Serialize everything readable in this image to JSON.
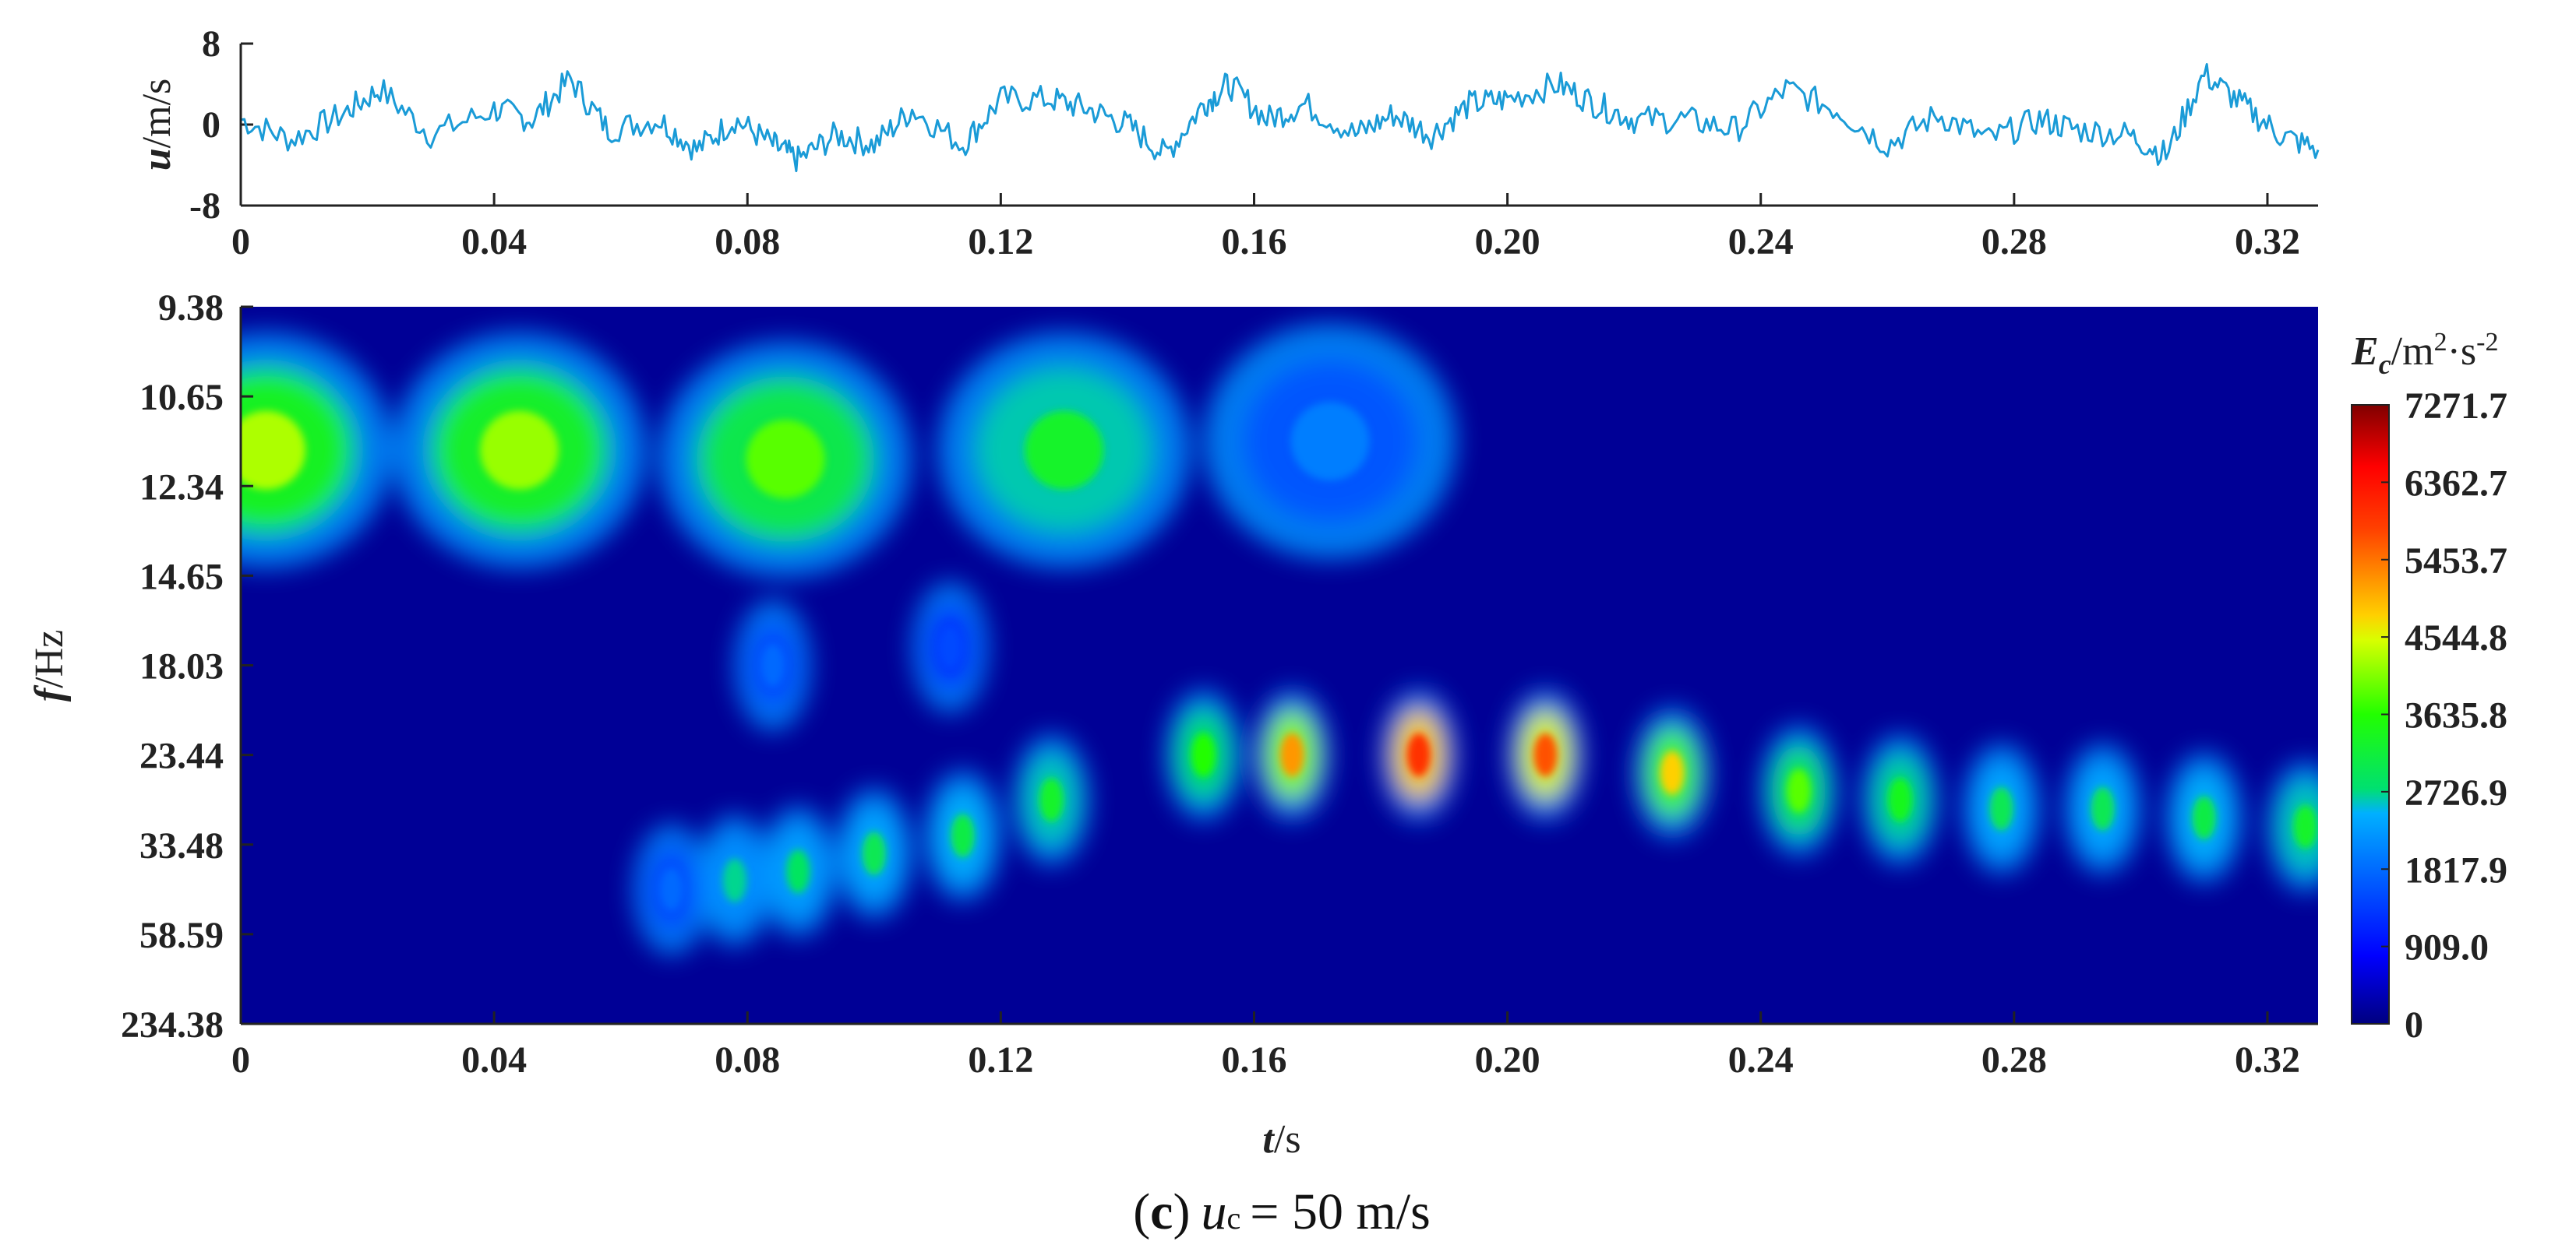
{
  "caption": {
    "label_open": "(",
    "label_letter": "c",
    "label_close": ")",
    "var": "u",
    "sub": "c",
    "rest": "= 50 m/s"
  },
  "chart_data": [
    {
      "type": "line",
      "name": "velocity-trace",
      "ylabel_var": "u",
      "ylabel_unit": "/m/s",
      "xlabel": "",
      "xlim": [
        0,
        0.328
      ],
      "ylim": [
        -8,
        8
      ],
      "yticks": [
        "8",
        "0",
        "-8"
      ],
      "ytick_values": [
        8,
        0,
        -8
      ],
      "xticks": [
        "0",
        "0.04",
        "0.08",
        "0.12",
        "0.16",
        "0.20",
        "0.24",
        "0.28",
        "0.32"
      ],
      "xtick_values": [
        0,
        0.04,
        0.08,
        0.12,
        0.16,
        0.2,
        0.24,
        0.28,
        0.32
      ],
      "color": "#1a9bd7",
      "series": [
        {
          "name": "u",
          "x": [
            0,
            0.008,
            0.016,
            0.022,
            0.03,
            0.04,
            0.046,
            0.052,
            0.058,
            0.066,
            0.072,
            0.078,
            0.084,
            0.088,
            0.094,
            0.1,
            0.106,
            0.114,
            0.12,
            0.128,
            0.134,
            0.14,
            0.146,
            0.152,
            0.156,
            0.162,
            0.168,
            0.176,
            0.182,
            0.188,
            0.194,
            0.2,
            0.208,
            0.214,
            0.22,
            0.228,
            0.236,
            0.244,
            0.252,
            0.26,
            0.268,
            0.276,
            0.284,
            0.29,
            0.298,
            0.304,
            0.31,
            0.316,
            0.322,
            0.328
          ],
          "values": [
            0.5,
            -1.5,
            1.0,
            3.5,
            -1.0,
            1.5,
            0.5,
            4.5,
            -0.5,
            0.5,
            -2.5,
            0.5,
            -2.0,
            -3.5,
            -1.0,
            -2.0,
            1.5,
            -2.0,
            2.5,
            2.5,
            1.5,
            0.0,
            -3.0,
            2.0,
            4.0,
            0.5,
            2.0,
            -1.0,
            1.0,
            -1.0,
            2.0,
            2.5,
            4.0,
            2.0,
            0.5,
            0.5,
            -0.5,
            3.5,
            1.5,
            -2.0,
            1.0,
            -1.5,
            0.5,
            -0.5,
            -1.0,
            -3.0,
            5.0,
            2.0,
            -1.0,
            -2.5
          ]
        }
      ]
    },
    {
      "type": "heatmap",
      "name": "wavelet-energy-spectrum",
      "xlabel_var": "t",
      "xlabel_unit": "/s",
      "ylabel_var": "f",
      "ylabel_unit": "/Hz",
      "xlim": [
        0,
        0.328
      ],
      "xticks": [
        "0",
        "0.04",
        "0.08",
        "0.12",
        "0.16",
        "0.20",
        "0.24",
        "0.28",
        "0.32"
      ],
      "xtick_values": [
        0,
        0.04,
        0.08,
        0.12,
        0.16,
        0.2,
        0.24,
        0.28,
        0.32
      ],
      "yticks": [
        "9.38",
        "10.65",
        "12.34",
        "14.65",
        "18.03",
        "23.44",
        "33.48",
        "58.59",
        "234.38"
      ],
      "ytick_index": [
        0,
        1,
        2,
        3,
        4,
        5,
        6,
        7,
        8
      ],
      "colorbar": {
        "title_var": "E",
        "title_sub": "c",
        "title_unit_a": "/m",
        "title_sup_a": "2",
        "title_unit_b": "·s",
        "title_sup_b": "-2",
        "min": 0,
        "max": 7271.7,
        "ticks": [
          "7271.7",
          "6362.7",
          "5453.7",
          "4544.8",
          "3635.8",
          "2726.9",
          "1817.9",
          "909.0",
          "0"
        ],
        "tick_values": [
          7271.7,
          6362.7,
          5453.7,
          4544.8,
          3635.8,
          2726.9,
          1817.9,
          909.0,
          0
        ],
        "colormap": "jet"
      },
      "energy_peaks": [
        {
          "t": 0.004,
          "f_index": 1.6,
          "value": 4300
        },
        {
          "t": 0.044,
          "f_index": 1.6,
          "value": 4200
        },
        {
          "t": 0.086,
          "f_index": 1.7,
          "value": 3900
        },
        {
          "t": 0.13,
          "f_index": 1.6,
          "value": 3300
        },
        {
          "t": 0.172,
          "f_index": 1.5,
          "value": 2000
        },
        {
          "t": 0.152,
          "f_index": 5.0,
          "value": 3600
        },
        {
          "t": 0.166,
          "f_index": 5.0,
          "value": 5200
        },
        {
          "t": 0.186,
          "f_index": 5.0,
          "value": 6000
        },
        {
          "t": 0.206,
          "f_index": 5.0,
          "value": 5700
        },
        {
          "t": 0.226,
          "f_index": 5.2,
          "value": 4800
        },
        {
          "t": 0.246,
          "f_index": 5.4,
          "value": 3900
        },
        {
          "t": 0.262,
          "f_index": 5.5,
          "value": 3400
        },
        {
          "t": 0.278,
          "f_index": 5.6,
          "value": 3000
        },
        {
          "t": 0.294,
          "f_index": 5.6,
          "value": 3000
        },
        {
          "t": 0.31,
          "f_index": 5.7,
          "value": 3100
        },
        {
          "t": 0.326,
          "f_index": 5.8,
          "value": 3300
        },
        {
          "t": 0.128,
          "f_index": 5.5,
          "value": 3300
        },
        {
          "t": 0.114,
          "f_index": 5.9,
          "value": 3100
        },
        {
          "t": 0.1,
          "f_index": 6.1,
          "value": 3000
        },
        {
          "t": 0.088,
          "f_index": 6.3,
          "value": 2900
        },
        {
          "t": 0.078,
          "f_index": 6.4,
          "value": 2700
        },
        {
          "t": 0.068,
          "f_index": 6.5,
          "value": 1800
        },
        {
          "t": 0.084,
          "f_index": 4.0,
          "value": 1800
        },
        {
          "t": 0.112,
          "f_index": 3.8,
          "value": 1500
        }
      ]
    }
  ]
}
